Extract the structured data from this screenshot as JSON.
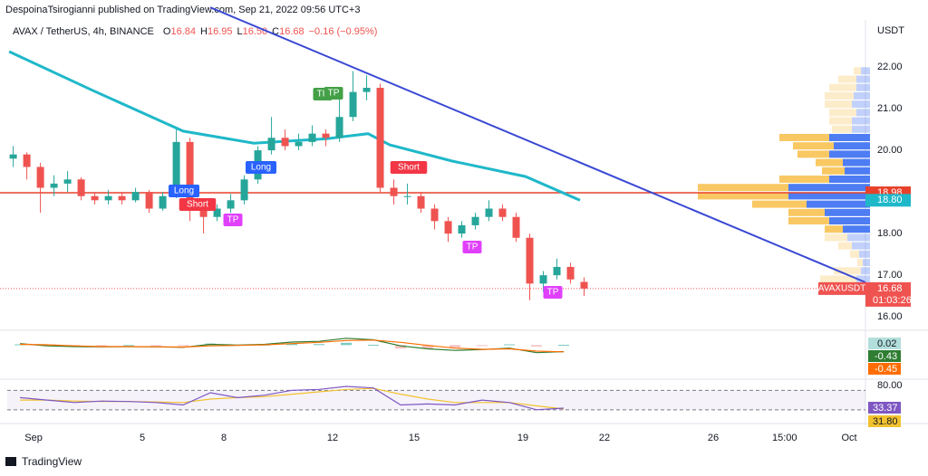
{
  "header": {
    "title": "DespoinaTsirogianni published on TradingView.com, Sep 21, 2022 09:56 UTC+3",
    "footer": "TradingView"
  },
  "chart_data": {
    "type": "candlestick",
    "legend": {
      "symbol": "AVAX / TetherUS, 4h, BINANCE",
      "ohlc": [
        {
          "label": "O",
          "value": "16.84"
        },
        {
          "label": "H",
          "value": "16.95"
        },
        {
          "label": "L",
          "value": "16.50"
        },
        {
          "label": "C",
          "value": "16.68"
        }
      ],
      "change": "−0.16 (−0.95%)"
    },
    "y_axis_label": "USDT",
    "xlim": [
      0.03,
      31.6
    ],
    "xticks": [
      {
        "value": 1,
        "label": "Sep"
      },
      5,
      8,
      12,
      15,
      19,
      22,
      26,
      {
        "value": 28.625,
        "label": "15:00"
      },
      {
        "value": 31,
        "label": "Oct"
      }
    ],
    "ylim": [
      15.7,
      23.13
    ],
    "yticks": [
      {
        "value": 16,
        "label": "16.00"
      },
      {
        "value": 17,
        "label": "17.00"
      },
      {
        "value": 18,
        "label": "18.00"
      },
      {
        "value": 19,
        "label": "19.00"
      },
      {
        "value": 20,
        "label": "20.00"
      },
      {
        "value": 21,
        "label": "21.00"
      },
      {
        "value": 22,
        "label": "22.00"
      }
    ],
    "up_color": "#26a69a",
    "down_color": "#ef5350",
    "x": [
      0.25,
      0.75,
      1.25,
      1.75,
      2.25,
      2.75,
      3.25,
      3.75,
      4.25,
      4.75,
      5.25,
      5.75,
      6.25,
      6.75,
      7.25,
      7.75,
      8.25,
      8.75,
      9.25,
      9.75,
      10.25,
      10.75,
      11.25,
      11.75,
      12.25,
      12.75,
      13.25,
      13.75,
      14.25,
      14.75,
      15.25,
      15.75,
      16.25,
      16.75,
      17.25,
      17.75,
      18.25,
      18.75,
      19.25,
      19.75,
      20.25,
      20.75,
      21.25
    ],
    "open": [
      19.8,
      19.9,
      19.6,
      19.1,
      19.2,
      19.3,
      18.9,
      18.8,
      18.9,
      18.8,
      19.0,
      18.6,
      18.9,
      20.2,
      18.6,
      18.4,
      18.6,
      18.8,
      19.3,
      20.0,
      20.3,
      20.1,
      20.2,
      20.4,
      20.3,
      20.8,
      21.4,
      21.5,
      19.1,
      18.9,
      18.9,
      18.6,
      18.3,
      18.0,
      18.2,
      18.4,
      18.6,
      18.4,
      17.9,
      16.8,
      17.0,
      17.2,
      16.84
    ],
    "high": [
      20.1,
      19.95,
      19.7,
      19.4,
      19.5,
      19.35,
      19.0,
      19.05,
      19.0,
      19.1,
      19.05,
      19.0,
      20.5,
      20.3,
      18.7,
      18.7,
      18.95,
      19.4,
      20.1,
      20.8,
      20.5,
      20.4,
      20.6,
      20.5,
      21.3,
      21.9,
      21.8,
      21.6,
      19.3,
      19.2,
      19.0,
      18.7,
      18.4,
      18.3,
      18.5,
      18.8,
      18.7,
      18.5,
      18.0,
      17.1,
      17.4,
      17.3,
      16.95
    ],
    "low": [
      19.6,
      19.3,
      18.5,
      18.9,
      19.0,
      18.8,
      18.7,
      18.7,
      18.7,
      18.75,
      18.5,
      18.55,
      18.85,
      18.3,
      18.0,
      18.3,
      18.5,
      18.7,
      19.2,
      19.9,
      20.0,
      20.0,
      20.1,
      20.1,
      20.2,
      20.7,
      21.2,
      19.0,
      18.7,
      18.7,
      18.5,
      18.1,
      17.8,
      17.9,
      18.1,
      18.3,
      18.3,
      17.8,
      16.4,
      16.6,
      16.9,
      16.8,
      16.5
    ],
    "close": [
      19.9,
      19.6,
      19.1,
      19.2,
      19.3,
      18.9,
      18.8,
      18.9,
      18.8,
      19.0,
      18.6,
      18.9,
      20.2,
      18.6,
      18.4,
      18.6,
      18.8,
      19.3,
      20.0,
      20.3,
      20.1,
      20.2,
      20.4,
      20.3,
      20.8,
      21.4,
      21.5,
      19.1,
      18.9,
      18.9,
      18.6,
      18.3,
      18.0,
      18.2,
      18.4,
      18.6,
      18.4,
      17.9,
      16.8,
      17.0,
      17.2,
      16.9,
      16.68
    ],
    "ma": {
      "color": "#1fb8c9",
      "x": [
        0.1,
        3.2,
        6.5,
        9.1,
        11.8,
        13.3,
        14.1,
        16.4,
        19.1,
        21.1
      ],
      "values": [
        22.37,
        21.43,
        20.46,
        20.17,
        20.28,
        20.4,
        20.13,
        19.74,
        19.37,
        18.8
      ]
    },
    "trendline": {
      "color": "#3949d4",
      "x": [
        7.5,
        31.6
      ],
      "values": [
        23.43,
        16.83
      ]
    },
    "horizontal_line": {
      "value": 18.98,
      "color": "#e8412b"
    },
    "price_tags": [
      {
        "value": 18.98,
        "label": "18.98",
        "color": "#e8412b"
      },
      {
        "value": 18.8,
        "label": "18.80",
        "color": "#1fb8c9"
      },
      {
        "value": 16.68,
        "label": "16.68",
        "color": "#ef5350",
        "countdown": "01:03:26",
        "symbol": "AVAXUSDT"
      }
    ],
    "signals": [
      {
        "label": "Long",
        "color": "#2962ff"
      },
      {
        "label": "Short",
        "color": "#f23645"
      },
      {
        "label": "TP",
        "color": "#e040fb"
      },
      {
        "label": "Long",
        "color": "#2962ff"
      },
      {
        "label": "TP",
        "color": "#43a047"
      },
      {
        "label": "TP",
        "color": "#43a047"
      },
      {
        "label": "Short",
        "color": "#f23645"
      },
      {
        "label": "TP",
        "color": "#e040fb"
      },
      {
        "label": "TP",
        "color": "#e040fb"
      }
    ],
    "volume_profile": {
      "prices": [
        21.9,
        21.7,
        21.5,
        21.3,
        21.1,
        20.9,
        20.7,
        20.5,
        20.3,
        20.1,
        19.9,
        19.7,
        19.5,
        19.3,
        19.1,
        18.9,
        18.7,
        18.5,
        18.3,
        18.1,
        17.9,
        17.7,
        17.5,
        17.3,
        17.1,
        16.9
      ],
      "up": [
        10,
        15,
        15,
        18,
        20,
        15,
        20,
        20,
        45,
        40,
        45,
        30,
        28,
        45,
        90,
        90,
        70,
        50,
        45,
        30,
        25,
        20,
        12,
        8,
        10,
        15
      ],
      "down": [
        8,
        20,
        30,
        32,
        30,
        30,
        25,
        22,
        55,
        45,
        35,
        30,
        25,
        55,
        100,
        100,
        60,
        40,
        45,
        20,
        25,
        15,
        10,
        6,
        30,
        40
      ],
      "value_area": [
        18.1,
        20.3
      ],
      "up_color": "#4d7cf3",
      "down_color": "#f9c863"
    },
    "macd": {
      "x": [
        0.5,
        1.5,
        2.5,
        3.5,
        4.5,
        5.5,
        6.5,
        7.5,
        8.5,
        9.5,
        10.5,
        11.5,
        12.5,
        13.5,
        14.5,
        15.5,
        16.5,
        17.5,
        18.5,
        19.5,
        20.5
      ],
      "ylim": [
        -1,
        0.8
      ],
      "histogram": [
        0.05,
        -0.07,
        -0.05,
        -0.02,
        0,
        -0.01,
        -0.02,
        0.1,
        0.02,
        0.03,
        0.1,
        0.07,
        0.15,
        0.02,
        -0.23,
        -0.23,
        -0.15,
        -0.02,
        0.05,
        -0.1,
        0.02
      ],
      "series": [
        {
          "color": "#2e7d32",
          "values": [
            0.1,
            -0.05,
            -0.1,
            -0.12,
            -0.1,
            -0.12,
            -0.15,
            0.05,
            0.0,
            0.05,
            0.2,
            0.25,
            0.45,
            0.35,
            -0.05,
            -0.25,
            -0.35,
            -0.3,
            -0.2,
            -0.5,
            -0.43
          ],
          "value_labels": [
            null,
            null,
            null,
            null,
            null,
            null,
            null,
            null,
            null,
            null,
            null,
            null,
            null,
            null,
            null,
            null,
            null,
            null,
            null,
            null,
            "-0.43"
          ]
        },
        {
          "color": "#ff6d00",
          "values": [
            0.05,
            0.02,
            -0.05,
            -0.1,
            -0.1,
            -0.11,
            -0.13,
            -0.05,
            -0.02,
            0.02,
            0.1,
            0.18,
            0.3,
            0.33,
            0.18,
            -0.02,
            -0.2,
            -0.28,
            -0.25,
            -0.4,
            -0.45
          ],
          "value_labels": [
            null,
            null,
            null,
            null,
            null,
            null,
            null,
            null,
            null,
            null,
            null,
            null,
            null,
            null,
            null,
            null,
            null,
            null,
            null,
            null,
            "-0.45"
          ]
        }
      ]
    },
    "rsi": {
      "x": [
        0.5,
        1.5,
        2.5,
        3.5,
        4.5,
        5.5,
        6.5,
        7.5,
        8.5,
        9.5,
        10.5,
        11.5,
        12.5,
        13.5,
        14.5,
        15.5,
        16.5,
        17.5,
        18.5,
        19.5,
        20.5
      ],
      "ylim": [
        20,
        90
      ],
      "yticks": [
        {
          "value": 80,
          "label": "80.00"
        }
      ],
      "bands": [
        70,
        30
      ],
      "series": [
        {
          "color": "#7e57c2",
          "values": [
            55,
            50,
            45,
            48,
            47,
            45,
            40,
            65,
            55,
            60,
            70,
            72,
            78,
            75,
            40,
            42,
            40,
            50,
            45,
            30,
            33.37
          ]
        },
        {
          "color": "#f2c12e",
          "values": [
            50,
            50,
            48,
            47,
            47,
            46,
            45,
            52,
            55,
            57,
            62,
            67,
            72,
            74,
            62,
            52,
            45,
            45,
            45,
            38,
            31.8
          ],
          "value_labels": [
            null,
            null,
            null,
            null,
            null,
            null,
            null,
            null,
            null,
            null,
            null,
            null,
            null,
            null,
            null,
            null,
            null,
            null,
            null,
            null,
            "31.80"
          ]
        }
      ]
    }
  }
}
